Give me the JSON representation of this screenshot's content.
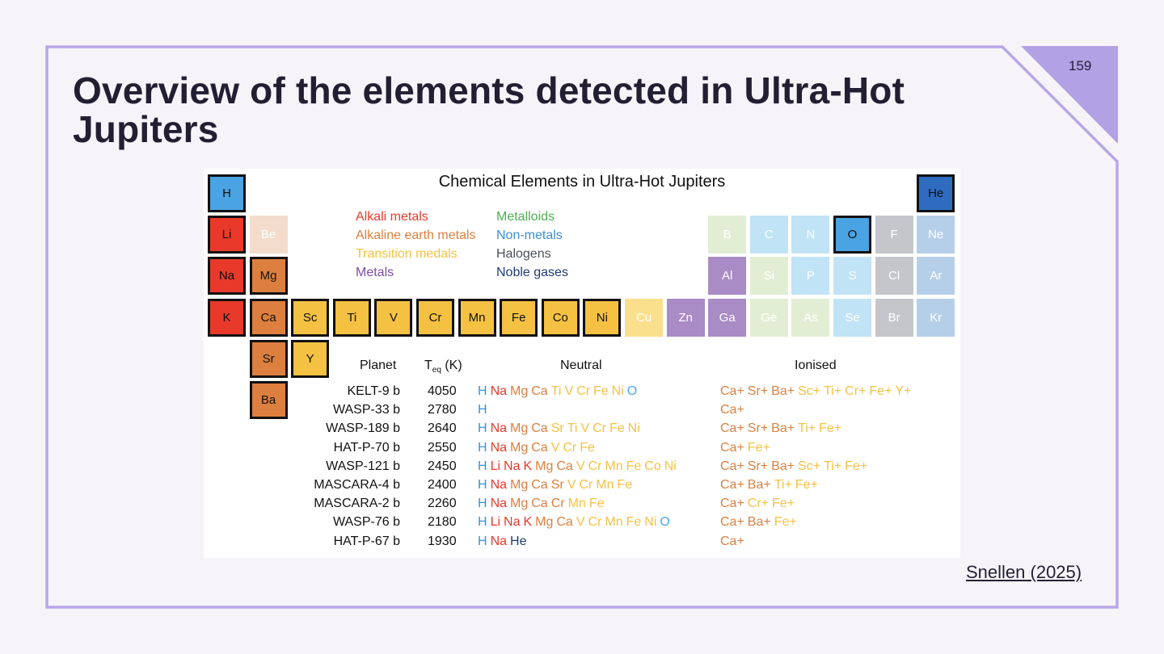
{
  "slide": {
    "title_line1": "Overview of the elements detected in Ultra-Hot",
    "title_line2": "Jupiters",
    "page_number": "159",
    "citation": "Snellen (2025)",
    "frame_color": "#b8a6e8"
  },
  "figure": {
    "title": "Chemical Elements in Ultra-Hot Jupiters",
    "colors": {
      "alk": "#e8392a",
      "ae": "#dd7f3e",
      "tm": "#f5c142",
      "met": "#7a4fa8",
      "mld": "#4caf50",
      "nm": "#3b8fd8",
      "hal": "#4a4f5c",
      "ng": "#1f3a78"
    },
    "legend": [
      {
        "label": "Alkali metals",
        "cat": "alk"
      },
      {
        "label": "Alkaline earth metals",
        "cat": "ae"
      },
      {
        "label": "Transition medals",
        "cat": "tm"
      },
      {
        "label": "Metals",
        "cat": "met"
      },
      {
        "label": "Metalloids",
        "cat": "mld"
      },
      {
        "label": "Non-metals",
        "cat": "nm"
      },
      {
        "label": "Halogens",
        "cat": "hal"
      },
      {
        "label": "Noble gases",
        "cat": "ng"
      }
    ],
    "elements": [
      {
        "sym": "H",
        "col": 0,
        "row": 0,
        "fill": "#4aa3e2",
        "detected": true
      },
      {
        "sym": "He",
        "col": 17,
        "row": 0,
        "fill": "#2f6bbf",
        "detected": true
      },
      {
        "sym": "Li",
        "col": 0,
        "row": 1,
        "fill": "#e8392a",
        "detected": true
      },
      {
        "sym": "Be",
        "col": 1,
        "row": 1,
        "fill": "#f3dccb",
        "detected": false
      },
      {
        "sym": "B",
        "col": 12,
        "row": 1,
        "fill": "#e2eed4",
        "detected": false
      },
      {
        "sym": "C",
        "col": 13,
        "row": 1,
        "fill": "#c0e3f6",
        "detected": false
      },
      {
        "sym": "N",
        "col": 14,
        "row": 1,
        "fill": "#c0e3f6",
        "detected": false
      },
      {
        "sym": "O",
        "col": 15,
        "row": 1,
        "fill": "#4aa3e2",
        "detected": true
      },
      {
        "sym": "F",
        "col": 16,
        "row": 1,
        "fill": "#c4c6cc",
        "detected": false
      },
      {
        "sym": "Ne",
        "col": 17,
        "row": 1,
        "fill": "#b6cfe9",
        "detected": false
      },
      {
        "sym": "Na",
        "col": 0,
        "row": 2,
        "fill": "#e8392a",
        "detected": true
      },
      {
        "sym": "Mg",
        "col": 1,
        "row": 2,
        "fill": "#dd7f3e",
        "detected": true
      },
      {
        "sym": "Al",
        "col": 12,
        "row": 2,
        "fill": "#a98bc6",
        "detected": false
      },
      {
        "sym": "Si",
        "col": 13,
        "row": 2,
        "fill": "#e2eed4",
        "detected": false
      },
      {
        "sym": "P",
        "col": 14,
        "row": 2,
        "fill": "#c0e3f6",
        "detected": false
      },
      {
        "sym": "S",
        "col": 15,
        "row": 2,
        "fill": "#c0e3f6",
        "detected": false
      },
      {
        "sym": "Cl",
        "col": 16,
        "row": 2,
        "fill": "#c4c6cc",
        "detected": false
      },
      {
        "sym": "Ar",
        "col": 17,
        "row": 2,
        "fill": "#b6cfe9",
        "detected": false
      },
      {
        "sym": "K",
        "col": 0,
        "row": 3,
        "fill": "#e8392a",
        "detected": true
      },
      {
        "sym": "Ca",
        "col": 1,
        "row": 3,
        "fill": "#dd7f3e",
        "detected": true
      },
      {
        "sym": "Sc",
        "col": 2,
        "row": 3,
        "fill": "#f5c142",
        "detected": true
      },
      {
        "sym": "Ti",
        "col": 3,
        "row": 3,
        "fill": "#f5c142",
        "detected": true
      },
      {
        "sym": "V",
        "col": 4,
        "row": 3,
        "fill": "#f5c142",
        "detected": true
      },
      {
        "sym": "Cr",
        "col": 5,
        "row": 3,
        "fill": "#f5c142",
        "detected": true
      },
      {
        "sym": "Mn",
        "col": 6,
        "row": 3,
        "fill": "#f5c142",
        "detected": true
      },
      {
        "sym": "Fe",
        "col": 7,
        "row": 3,
        "fill": "#f5c142",
        "detected": true
      },
      {
        "sym": "Co",
        "col": 8,
        "row": 3,
        "fill": "#f5c142",
        "detected": true
      },
      {
        "sym": "Ni",
        "col": 9,
        "row": 3,
        "fill": "#f5c142",
        "detected": true
      },
      {
        "sym": "Cu",
        "col": 10,
        "row": 3,
        "fill": "#fae08c",
        "detected": false
      },
      {
        "sym": "Zn",
        "col": 11,
        "row": 3,
        "fill": "#a98bc6",
        "detected": false
      },
      {
        "sym": "Ga",
        "col": 12,
        "row": 3,
        "fill": "#a98bc6",
        "detected": false
      },
      {
        "sym": "Ge",
        "col": 13,
        "row": 3,
        "fill": "#e2eed4",
        "detected": false
      },
      {
        "sym": "As",
        "col": 14,
        "row": 3,
        "fill": "#e2eed4",
        "detected": false
      },
      {
        "sym": "Se",
        "col": 15,
        "row": 3,
        "fill": "#c0e3f6",
        "detected": false
      },
      {
        "sym": "Br",
        "col": 16,
        "row": 3,
        "fill": "#c4c6cc",
        "detected": false
      },
      {
        "sym": "Kr",
        "col": 17,
        "row": 3,
        "fill": "#b6cfe9",
        "detected": false
      },
      {
        "sym": "Sr",
        "col": 1,
        "row": 4,
        "fill": "#dd7f3e",
        "detected": true
      },
      {
        "sym": "Y",
        "col": 2,
        "row": 4,
        "fill": "#f5c142",
        "detected": true
      },
      {
        "sym": "Ba",
        "col": 1,
        "row": 5,
        "fill": "#dd7f3e",
        "detected": true
      }
    ],
    "table": {
      "headers": {
        "planet": "Planet",
        "teq": "T",
        "teq_sub": "eq",
        "teq_unit": " (K)",
        "neutral": "Neutral",
        "ionised": "Ionised"
      },
      "rows": [
        {
          "planet": "KELT-9 b",
          "teq": "4050",
          "neutral": [
            [
              "H",
              "nm"
            ],
            [
              "Na",
              "alk"
            ],
            [
              "Mg",
              "ae"
            ],
            [
              "Ca",
              "ae"
            ],
            [
              "Ti",
              "tm"
            ],
            [
              "V",
              "tm"
            ],
            [
              "Cr",
              "tm"
            ],
            [
              "Fe",
              "tm"
            ],
            [
              "Ni",
              "tm"
            ],
            [
              "O",
              "nm2"
            ]
          ],
          "ionised": [
            [
              "Ca+",
              "ae"
            ],
            [
              "Sr+",
              "ae"
            ],
            [
              "Ba+",
              "ae"
            ],
            [
              "Sc+",
              "tm"
            ],
            [
              "Ti+",
              "tm"
            ],
            [
              "Cr+",
              "tm"
            ],
            [
              "Fe+",
              "tm"
            ],
            [
              "Y+",
              "tm"
            ]
          ]
        },
        {
          "planet": "WASP-33 b",
          "teq": "2780",
          "neutral": [
            [
              "H",
              "nm"
            ]
          ],
          "ionised": [
            [
              "Ca+",
              "ae"
            ]
          ]
        },
        {
          "planet": "WASP-189 b",
          "teq": "2640",
          "neutral": [
            [
              "H",
              "nm"
            ],
            [
              "Na",
              "alk"
            ],
            [
              "Mg",
              "ae"
            ],
            [
              "Ca",
              "ae"
            ],
            [
              "Sr",
              "tm"
            ],
            [
              "Ti",
              "tm"
            ],
            [
              "V",
              "tm"
            ],
            [
              "Cr",
              "tm"
            ],
            [
              "Fe",
              "tm"
            ],
            [
              "Ni",
              "tm"
            ]
          ],
          "ionised": [
            [
              "Ca+",
              "ae"
            ],
            [
              "Sr+",
              "ae"
            ],
            [
              "Ba+",
              "ae"
            ],
            [
              "Ti+",
              "tm"
            ],
            [
              "Fe+",
              "tm"
            ]
          ]
        },
        {
          "planet": "HAT-P-70 b",
          "teq": "2550",
          "neutral": [
            [
              "H",
              "nm"
            ],
            [
              "Na",
              "alk"
            ],
            [
              "Mg",
              "ae"
            ],
            [
              "Ca",
              "ae"
            ],
            [
              "V",
              "tm"
            ],
            [
              "Cr",
              "tm"
            ],
            [
              "Fe",
              "tm"
            ]
          ],
          "ionised": [
            [
              "Ca+",
              "ae"
            ],
            [
              "Fe+",
              "tm"
            ]
          ]
        },
        {
          "planet": "WASP-121 b",
          "teq": "2450",
          "neutral": [
            [
              "H",
              "nm"
            ],
            [
              "Li",
              "alk"
            ],
            [
              "Na",
              "alk"
            ],
            [
              "K",
              "alk"
            ],
            [
              "Mg",
              "ae"
            ],
            [
              "Ca",
              "ae"
            ],
            [
              "V",
              "tm"
            ],
            [
              "Cr",
              "tm"
            ],
            [
              "Mn",
              "tm"
            ],
            [
              "Fe",
              "tm"
            ],
            [
              "Co",
              "tm"
            ],
            [
              "Ni",
              "tm"
            ]
          ],
          "ionised": [
            [
              "Ca+",
              "ae"
            ],
            [
              "Sr+",
              "ae"
            ],
            [
              "Ba+",
              "ae"
            ],
            [
              "Sc+",
              "tm"
            ],
            [
              "Ti+",
              "tm"
            ],
            [
              "Fe+",
              "tm"
            ]
          ]
        },
        {
          "planet": "MASCARA-4 b",
          "teq": "2400",
          "neutral": [
            [
              "H",
              "nm"
            ],
            [
              "Na",
              "alk"
            ],
            [
              "Mg",
              "ae"
            ],
            [
              "Ca",
              "ae"
            ],
            [
              "Sr",
              "ae"
            ],
            [
              "V",
              "tm"
            ],
            [
              "Cr",
              "tm"
            ],
            [
              "Mn",
              "tm"
            ],
            [
              "Fe",
              "tm"
            ]
          ],
          "ionised": [
            [
              "Ca+",
              "ae"
            ],
            [
              "Ba+",
              "ae"
            ],
            [
              "Ti+",
              "tm"
            ],
            [
              "Fe+",
              "tm"
            ]
          ]
        },
        {
          "planet": "MASCARA-2 b",
          "teq": "2260",
          "neutral": [
            [
              "H",
              "nm"
            ],
            [
              "Na",
              "alk"
            ],
            [
              "Mg",
              "ae"
            ],
            [
              "Ca",
              "ae"
            ],
            [
              "Cr",
              "ae"
            ],
            [
              "Mn",
              "tm"
            ],
            [
              "Fe",
              "tm"
            ]
          ],
          "ionised": [
            [
              "Ca+",
              "ae"
            ],
            [
              "Cr+",
              "tm"
            ],
            [
              "Fe+",
              "tm"
            ]
          ]
        },
        {
          "planet": "WASP-76 b",
          "teq": "2180",
          "neutral": [
            [
              "H",
              "nm"
            ],
            [
              "Li",
              "alk"
            ],
            [
              "Na",
              "alk"
            ],
            [
              "K",
              "alk"
            ],
            [
              "Mg",
              "ae"
            ],
            [
              "Ca",
              "ae"
            ],
            [
              "V",
              "tm"
            ],
            [
              "Cr",
              "tm"
            ],
            [
              "Mn",
              "tm"
            ],
            [
              "Fe",
              "tm"
            ],
            [
              "Ni",
              "tm"
            ],
            [
              "O",
              "nm2"
            ]
          ],
          "ionised": [
            [
              "Ca+",
              "ae"
            ],
            [
              "Ba+",
              "ae"
            ],
            [
              "Fe+",
              "tm"
            ]
          ]
        },
        {
          "planet": "HAT-P-67 b",
          "teq": "1930",
          "neutral": [
            [
              "H",
              "nm"
            ],
            [
              "Na",
              "alk"
            ],
            [
              "He",
              "ng"
            ]
          ],
          "ionised": [
            [
              "Ca+",
              "ae"
            ]
          ]
        }
      ]
    }
  }
}
